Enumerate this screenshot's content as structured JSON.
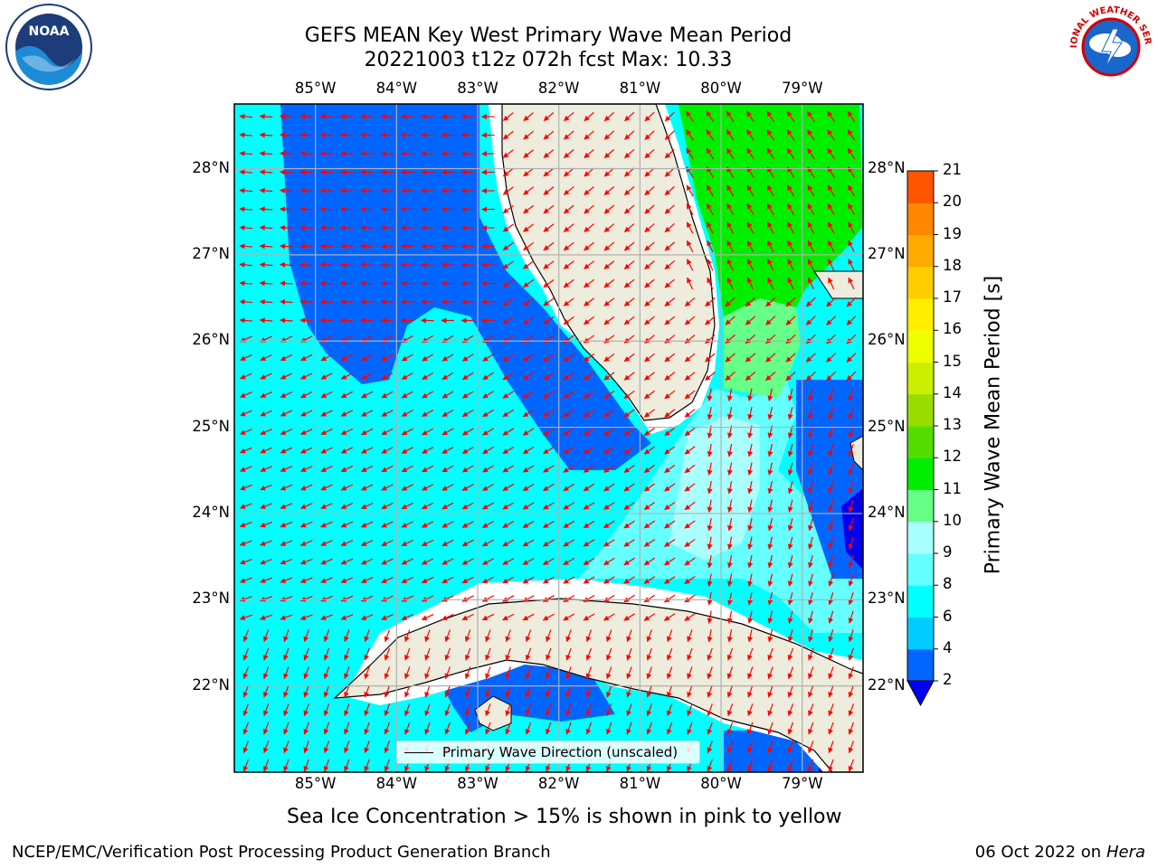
{
  "title_line1": "GEFS MEAN Key West Primary Wave Mean Period",
  "title_line2": "20221003 t12z 072h fcst   Max: 10.33",
  "map": {
    "lon_labels": [
      "85°W",
      "84°W",
      "83°W",
      "82°W",
      "81°W",
      "80°W",
      "79°W"
    ],
    "lat_labels": [
      "28°N",
      "27°N",
      "26°N",
      "25°N",
      "24°N",
      "23°N",
      "22°N"
    ],
    "extent": {
      "lon_min": -86.0,
      "lon_max": -78.25,
      "lat_min": 21.0,
      "lat_max": 28.75
    },
    "grid": true,
    "arrow_color": "#ff0000",
    "land_color": "#eeecdc"
  },
  "legend": {
    "label": "Primary Wave Direction (unscaled)"
  },
  "colorbar": {
    "title": "Primary Wave Mean Period [s]",
    "ticks": [
      "2",
      "4",
      "6",
      "8",
      "9",
      "10",
      "11",
      "12",
      "13",
      "14",
      "15",
      "16",
      "17",
      "18",
      "19",
      "20",
      "21"
    ],
    "colors": [
      "#0066ff",
      "#00ccff",
      "#00ffff",
      "#66ffff",
      "#aaffff",
      "#66ff88",
      "#00ee00",
      "#55dd00",
      "#99dd00",
      "#ccee00",
      "#eeff00",
      "#ffee00",
      "#ffcc00",
      "#ffaa00",
      "#ff8800",
      "#ff5500",
      "#ff2200",
      "#ff0000"
    ],
    "extend_color": "#0000ee"
  },
  "subtitle": "Sea Ice Concentration > 15% is shown in pink to yellow",
  "footer": {
    "left": "NCEP/EMC/Verification Post Processing Product Generation Branch",
    "date": "06 Oct 2022 on ",
    "host": "Hera"
  },
  "logos": {
    "left": "NOAA",
    "right": "NATIONAL WEATHER SERVICE"
  }
}
